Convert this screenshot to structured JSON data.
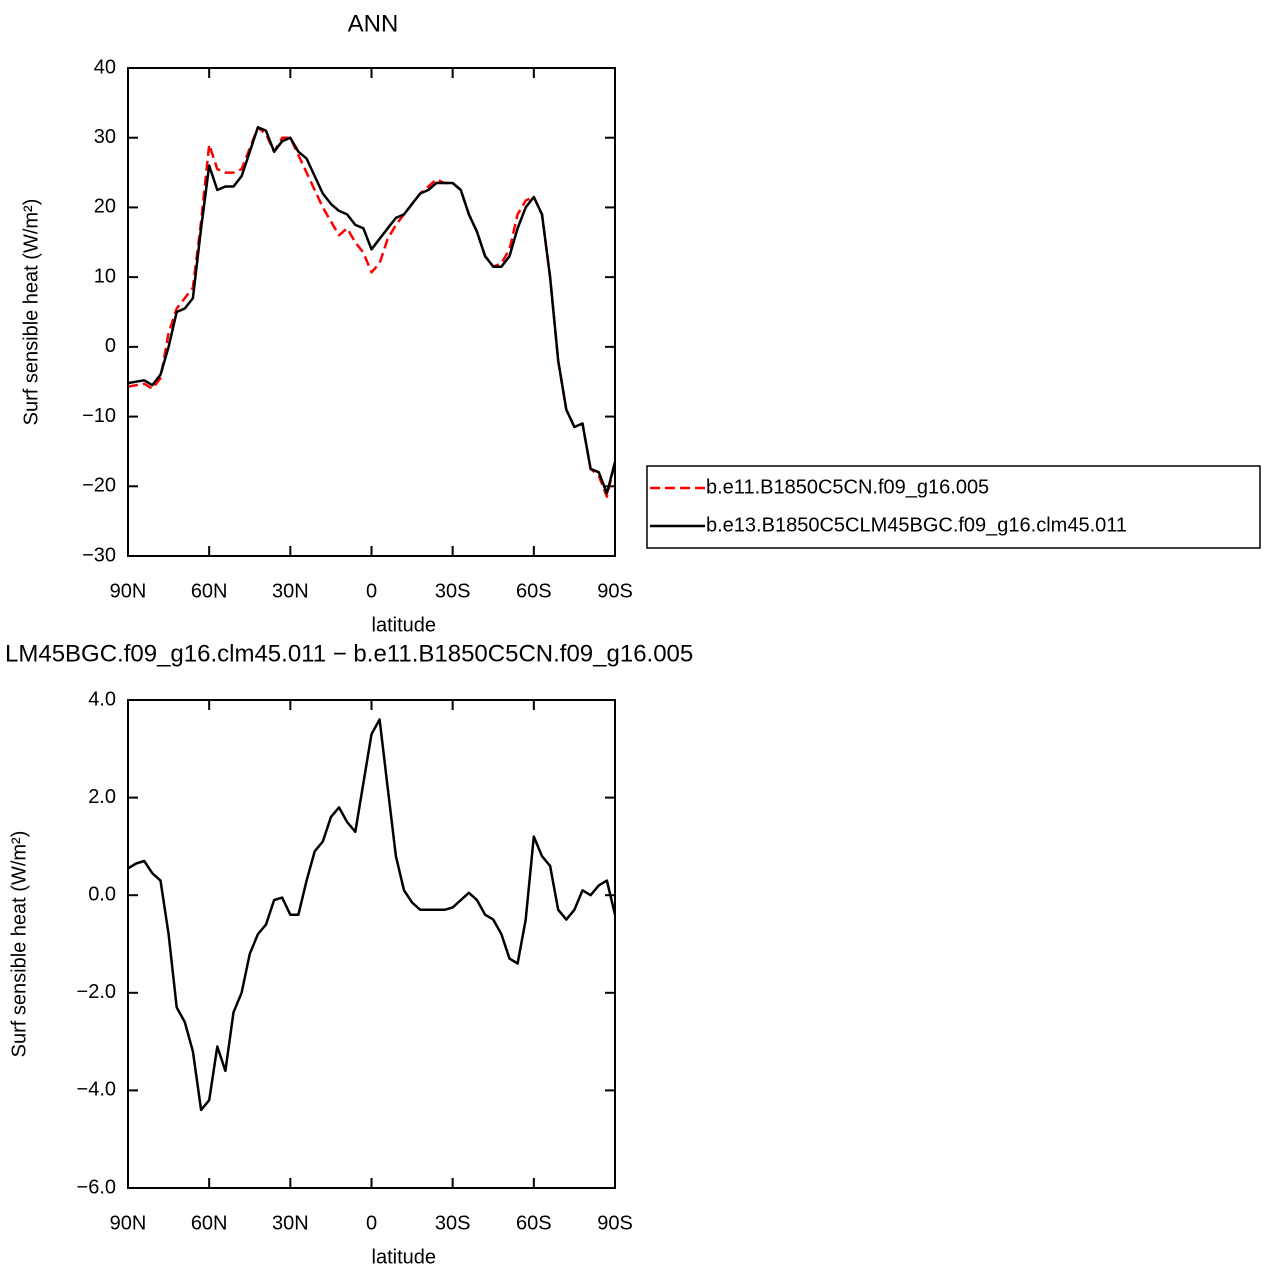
{
  "chart_data": [
    {
      "type": "line",
      "title": "ANN",
      "x_label": "latitude",
      "y_label": "Surf sensible heat (W/m²)",
      "x": [
        90,
        87,
        84,
        81,
        78,
        75,
        72,
        69,
        66,
        63,
        60,
        57,
        54,
        51,
        48,
        45,
        42,
        39,
        36,
        33,
        30,
        27,
        24,
        21,
        18,
        15,
        12,
        9,
        6,
        3,
        0,
        -3,
        -6,
        -9,
        -12,
        -15,
        -18,
        -21,
        -24,
        -27,
        -30,
        -33,
        -36,
        -39,
        -42,
        -45,
        -48,
        -51,
        -54,
        -57,
        -60,
        -63,
        -66,
        -69,
        -72,
        -75,
        -78,
        -81,
        -84,
        -87,
        -90
      ],
      "series": [
        {
          "name": "b.e11.B1850C5CN.f09_g16.005",
          "color": "#ff0000",
          "line_style": "dashed",
          "values": [
            -5.7,
            -5.5,
            -5.3,
            -6,
            -4.5,
            2,
            5.5,
            7,
            8.5,
            18,
            29,
            25.5,
            25,
            25,
            25.5,
            28.5,
            31.5,
            30.5,
            28,
            30,
            30,
            27.5,
            25,
            22.5,
            20,
            18,
            16,
            17,
            15,
            13.5,
            10.7,
            12,
            15.5,
            17.5,
            19,
            20.5,
            22,
            23,
            24,
            23.5,
            23.5,
            22.5,
            19,
            16.5,
            13,
            11.5,
            12,
            14,
            19,
            21,
            21.5,
            19,
            10,
            -2,
            -9,
            -11.5,
            -11,
            -17.5,
            -18.5,
            -21.5,
            -16.5
          ]
        },
        {
          "name": "b.e13.B1850C5CLM45BGC.f09_g16.clm45.011",
          "color": "#000000",
          "line_style": "solid",
          "values": [
            -5.2,
            -5,
            -4.8,
            -5.5,
            -4,
            0,
            5,
            5.5,
            7,
            17,
            26,
            22.5,
            23,
            23,
            24.5,
            28,
            31.5,
            31,
            28,
            29.5,
            30,
            28,
            27,
            24.5,
            22,
            20.5,
            19.5,
            19,
            17.5,
            17,
            14,
            15.5,
            17,
            18.5,
            19,
            20.5,
            22,
            22.5,
            23.5,
            23.5,
            23.5,
            22.5,
            19,
            16.5,
            13,
            11.5,
            11.5,
            13,
            17,
            20,
            21.5,
            19,
            10,
            -2,
            -9,
            -11.5,
            -11,
            -17.5,
            -18,
            -21,
            -16.5
          ]
        }
      ],
      "xlim": [
        90,
        -90
      ],
      "xticks": [
        {
          "value": 90,
          "label": "90N"
        },
        {
          "value": 60,
          "label": "60N"
        },
        {
          "value": 30,
          "label": "30N"
        },
        0,
        {
          "value": -30,
          "label": "30S"
        },
        {
          "value": -60,
          "label": "60S"
        },
        {
          "value": -90,
          "label": "90S"
        }
      ],
      "ylim": [
        -30,
        40
      ],
      "yticks": [
        {
          "value": -30,
          "label": "−30"
        },
        {
          "value": -20,
          "label": "−20"
        },
        {
          "value": -10,
          "label": "−10"
        },
        0,
        10,
        20,
        30,
        40
      ],
      "legend": "outside-right"
    },
    {
      "type": "line",
      "title": "LM45BGC.f09_g16.clm45.011 − b.e11.B1850C5CN.f09_g16.005",
      "x_label": "latitude",
      "y_label": "Surf sensible heat (W/m²)",
      "x": [
        90,
        87,
        84,
        81,
        78,
        75,
        72,
        69,
        66,
        63,
        60,
        57,
        54,
        51,
        48,
        45,
        42,
        39,
        36,
        33,
        30,
        27,
        24,
        21,
        18,
        15,
        12,
        9,
        6,
        3,
        0,
        -3,
        -6,
        -9,
        -12,
        -15,
        -18,
        -21,
        -24,
        -27,
        -30,
        -33,
        -36,
        -39,
        -42,
        -45,
        -48,
        -51,
        -54,
        -57,
        -60,
        -63,
        -66,
        -69,
        -72,
        -75,
        -78,
        -81,
        -84,
        -87,
        -90
      ],
      "color": "#000000",
      "values": [
        0.55,
        0.65,
        0.7,
        0.45,
        0.3,
        -0.8,
        -2.3,
        -2.6,
        -3.2,
        -4.4,
        -4.2,
        -3.1,
        -3.6,
        -2.4,
        -2,
        -1.2,
        -0.8,
        -0.6,
        -0.1,
        -0.05,
        -0.4,
        -0.4,
        0.3,
        0.9,
        1.1,
        1.6,
        1.8,
        1.5,
        1.3,
        2.3,
        3.3,
        3.6,
        2.2,
        0.8,
        0.1,
        -0.15,
        -0.3,
        -0.3,
        -0.3,
        -0.3,
        -0.25,
        -0.1,
        0.05,
        -0.1,
        -0.4,
        -0.5,
        -0.8,
        -1.3,
        -1.4,
        -0.5,
        1.2,
        0.8,
        0.6,
        -0.3,
        -0.5,
        -0.3,
        0.1,
        0,
        0.2,
        0.3,
        -0.4
      ],
      "xlim": [
        90,
        -90
      ],
      "xticks": [
        {
          "value": 90,
          "label": "90N"
        },
        {
          "value": 60,
          "label": "60N"
        },
        {
          "value": 30,
          "label": "30N"
        },
        0,
        {
          "value": -30,
          "label": "30S"
        },
        {
          "value": -60,
          "label": "60S"
        },
        {
          "value": -90,
          "label": "90S"
        }
      ],
      "ylim": [
        -6,
        4
      ],
      "yticks": [
        {
          "value": -6,
          "label": "−6.0"
        },
        {
          "value": -4,
          "label": "−4.0"
        },
        {
          "value": -2,
          "label": "−2.0"
        },
        {
          "value": 0,
          "label": "0.0"
        },
        {
          "value": 2,
          "label": "2.0"
        },
        {
          "value": 4,
          "label": "4.0"
        }
      ]
    }
  ]
}
